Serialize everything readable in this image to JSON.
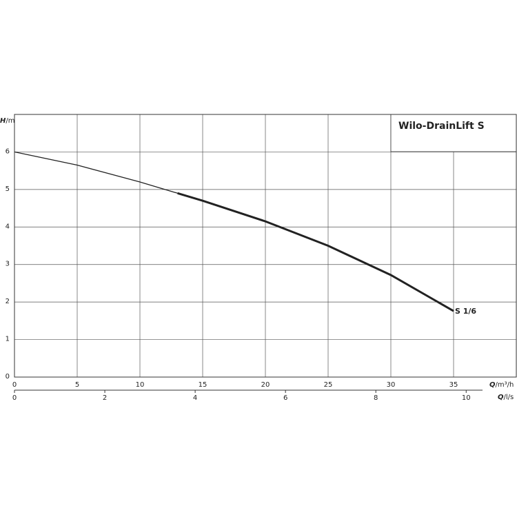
{
  "chart_data": {
    "type": "line",
    "title": "Wilo-DrainLift S",
    "y_label": {
      "symbol": "H",
      "unit": "/m"
    },
    "x_label": {
      "symbol": "Q",
      "unit": "/m³/h"
    },
    "x2_label": {
      "symbol": "Q",
      "unit": "/l/s"
    },
    "x": [
      0,
      5,
      10,
      13,
      15,
      20,
      25,
      30,
      35
    ],
    "series": [
      {
        "name": "S 1/6",
        "color": "#222222",
        "values": [
          6.0,
          5.65,
          5.2,
          4.9,
          4.7,
          4.15,
          3.5,
          2.72,
          1.76
        ]
      }
    ],
    "bold_xlim": [
      13,
      35
    ],
    "xlim": [
      0,
      40
    ],
    "xticks": [
      0,
      5,
      10,
      15,
      20,
      25,
      30,
      35
    ],
    "ylim": [
      0,
      7
    ],
    "yticks": [
      0,
      1,
      2,
      3,
      4,
      5,
      6
    ],
    "x2lim": [
      0,
      11.11
    ],
    "x2ticks": [
      0,
      2,
      4,
      6,
      8,
      10
    ],
    "grid": true
  }
}
